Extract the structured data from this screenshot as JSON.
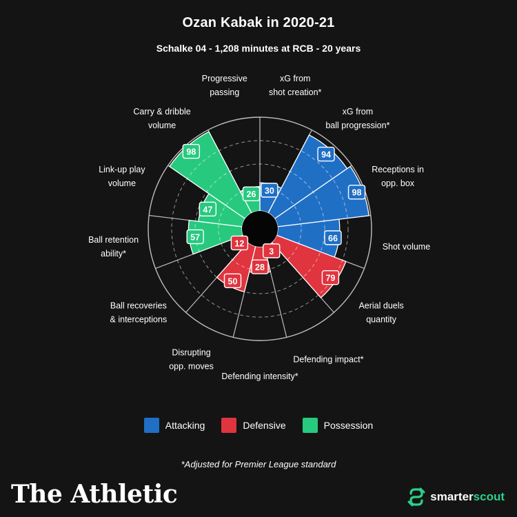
{
  "header": {
    "title": "Ozan Kabak in 2020-21",
    "subtitle": "Schalke 04 - 1,208 minutes at RCB - 20 years"
  },
  "chart_data": {
    "type": "polar-bar",
    "ylim": [
      0,
      100
    ],
    "grid": true,
    "categories": [
      "xG from shot creation*",
      "xG from ball progression*",
      "Receptions in opp. box",
      "Shot volume",
      "Aerial duels quantity",
      "Defending impact*",
      "Defending intensity*",
      "Disrupting opp. moves",
      "Ball recoveries & interceptions",
      "Ball retention ability*",
      "Link-up play volume",
      "Carry & dribble volume",
      "Progressive passing"
    ],
    "values": [
      30,
      94,
      98,
      66,
      79,
      3,
      28,
      50,
      12,
      57,
      47,
      98,
      26
    ],
    "groups": [
      "Attacking",
      "Attacking",
      "Attacking",
      "Attacking",
      "Defensive",
      "Defensive",
      "Defensive",
      "Defensive",
      "Defensive",
      "Possession",
      "Possession",
      "Possession",
      "Possession"
    ],
    "labels": [
      [
        "xG from",
        "shot creation*"
      ],
      [
        "xG from",
        "ball progression*"
      ],
      [
        "Receptions in",
        "opp. box"
      ],
      [
        "Shot volume"
      ],
      [
        "Aerial duels",
        "quantity"
      ],
      [
        "Defending impact*"
      ],
      [
        "Defending intensity*"
      ],
      [
        "Disrupting",
        "opp. moves"
      ],
      [
        "Ball recoveries",
        "& interceptions"
      ],
      [
        "Ball retention",
        "ability*"
      ],
      [
        "Link-up play",
        "volume"
      ],
      [
        "Carry & dribble",
        "volume"
      ],
      [
        "Progressive",
        "passing"
      ]
    ]
  },
  "legend": {
    "placement": "bottom-center",
    "items": [
      {
        "label": "Attacking",
        "color": "#1f6fc5"
      },
      {
        "label": "Defensive",
        "color": "#e0343f"
      },
      {
        "label": "Possession",
        "color": "#27c97f"
      }
    ]
  },
  "footnote": "*Adjusted for Premier League standard",
  "branding": {
    "publisher": "The Athletic",
    "partner_part1": "smarter",
    "partner_part2": "scout",
    "partner_icon": "smarterscout-logo-icon"
  }
}
